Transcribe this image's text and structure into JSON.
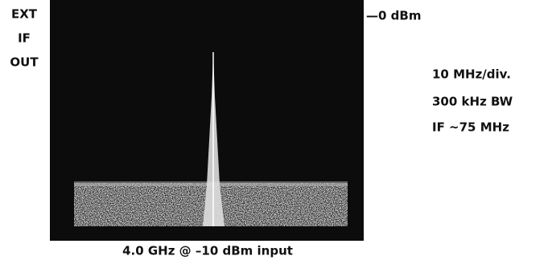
{
  "left_label": [
    "EXT",
    "IF",
    "OUT"
  ],
  "reference_label": "—0 dBm",
  "settings": [
    "10 MHz/div.",
    "300 kHz BW",
    "IF ~75 MHz"
  ],
  "caption": "4.0 GHz @ –10 dBm input"
}
